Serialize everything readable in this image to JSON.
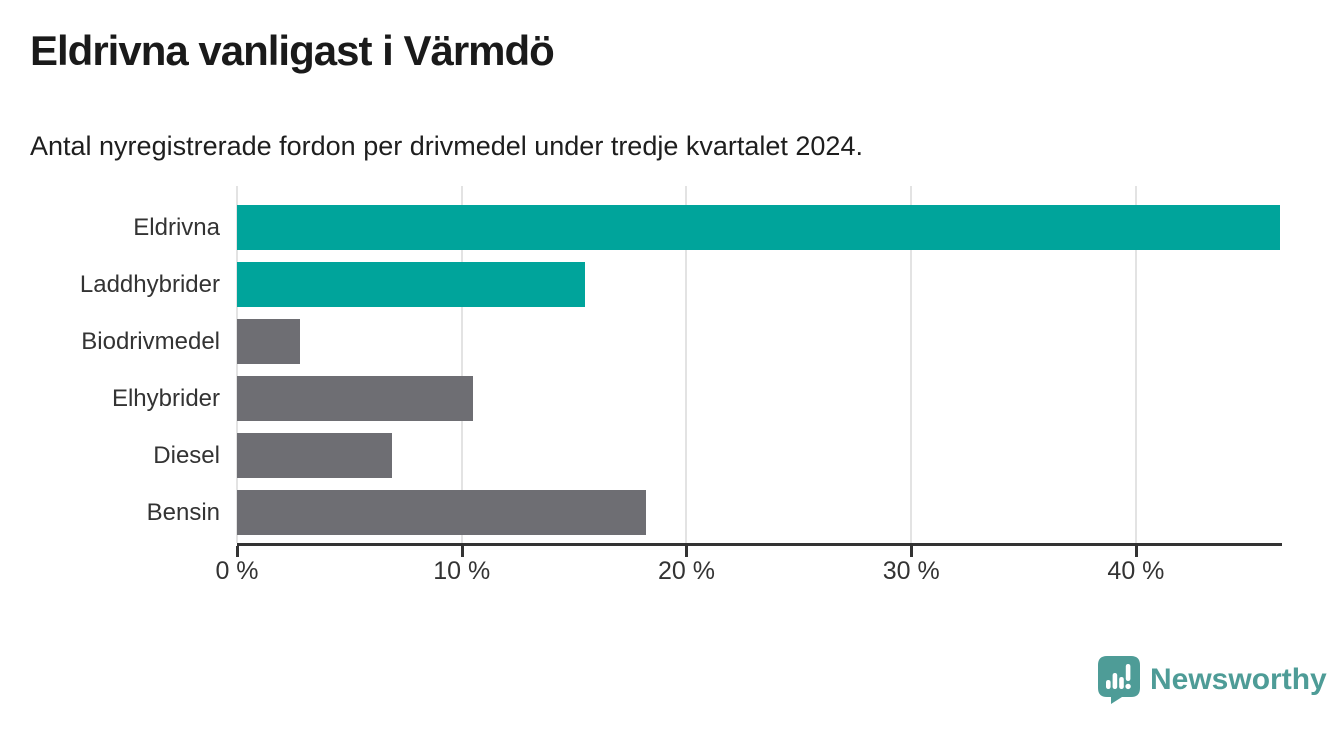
{
  "header": {
    "title": "Eldrivna vanligast i Värmdö",
    "subtitle": "Antal nyregistrerade fordon per drivmedel under tredje kvartalet 2024."
  },
  "chart_data": {
    "type": "bar",
    "orientation": "horizontal",
    "title": "Eldrivna vanligast i Värmdö",
    "subtitle": "Antal nyregistrerade fordon per drivmedel under tredje kvartalet 2024.",
    "categories": [
      "Eldrivna",
      "Laddhybrider",
      "Biodrivmedel",
      "Elhybrider",
      "Diesel",
      "Bensin"
    ],
    "values": [
      46.4,
      15.5,
      2.8,
      10.5,
      6.9,
      18.2
    ],
    "unit": "%",
    "xlim": [
      0,
      46.5
    ],
    "x_ticks": [
      0,
      10,
      20,
      30,
      40
    ],
    "x_tick_labels": [
      "0 %",
      "10 %",
      "20 %",
      "30 %",
      "40 %"
    ],
    "grid": true,
    "legend": false,
    "bar_colors": [
      "#00a49b",
      "#00a49b",
      "#6e6e73",
      "#6e6e73",
      "#6e6e73",
      "#6e6e73"
    ]
  },
  "footer": {
    "brand_label": "Newsworthy"
  },
  "colors": {
    "accent_teal": "#00a49b",
    "bar_gray": "#6e6e73",
    "grid_gray": "#e3e3e3",
    "axis_dark": "#333333",
    "title_black": "#1a1a1a",
    "logo_teal": "#4e9c97"
  }
}
